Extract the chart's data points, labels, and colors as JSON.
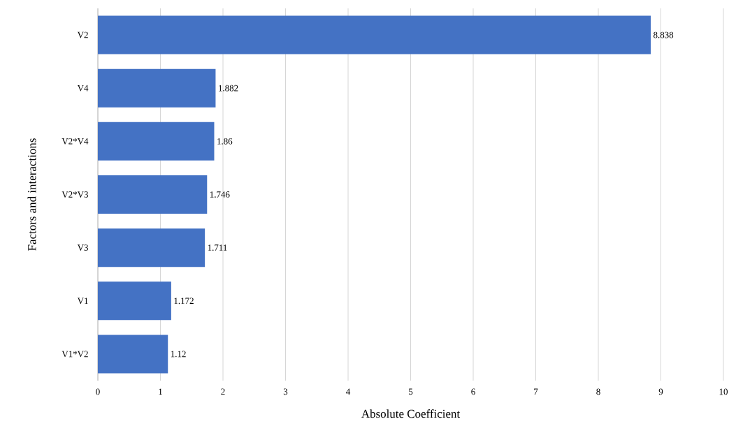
{
  "chart_data": {
    "type": "bar",
    "orientation": "horizontal",
    "xlabel": "Absolute Coefficient",
    "ylabel": "Factors and interactions",
    "categories": [
      "V2",
      "V4",
      "V2*V4",
      "V2*V3",
      "V3",
      "V1",
      "V1*V2"
    ],
    "values": [
      8.838,
      1.882,
      1.86,
      1.746,
      1.711,
      1.172,
      1.12
    ],
    "color": "#4472c4",
    "xlim": [
      0,
      10
    ],
    "xticks": [
      0,
      1,
      2,
      3,
      4,
      5,
      6,
      7,
      8,
      9,
      10
    ],
    "grid": "x",
    "data_labels": true
  }
}
